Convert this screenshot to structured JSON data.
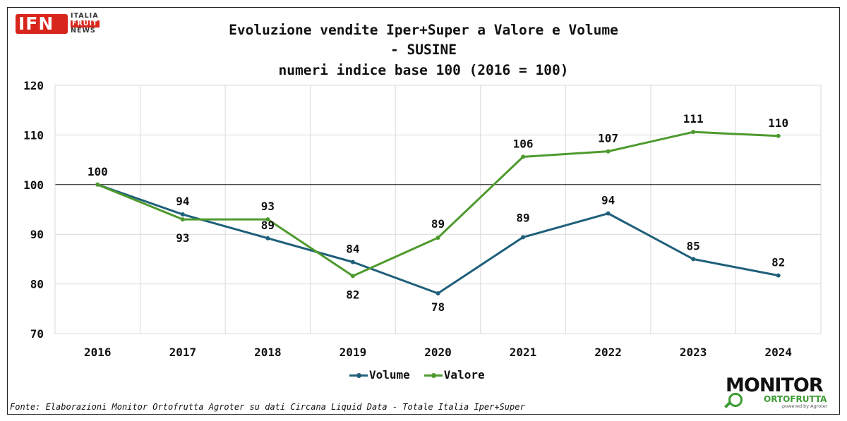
{
  "logo": {
    "main": "IFN",
    "line1": "ITALIA",
    "line2": "FRUIT",
    "line3": "NEWS"
  },
  "title_lines": [
    "Evoluzione vendite Iper+Super a Valore e Volume",
    "- SUSINE",
    "numeri indice base 100 (2016 = 100)"
  ],
  "chart_data": {
    "type": "line",
    "x": [
      "2016",
      "2017",
      "2018",
      "2019",
      "2020",
      "2021",
      "2022",
      "2023",
      "2024"
    ],
    "ylim": [
      70,
      120
    ],
    "yticks": [
      70,
      80,
      90,
      100,
      110,
      120
    ],
    "reference_line": 100,
    "grid": true,
    "legend_position": "bottom",
    "series": [
      {
        "name": "Volume",
        "color": "#1f5f7a",
        "values": [
          100,
          94,
          89.2,
          84.4,
          78.1,
          89.4,
          94.2,
          85,
          81.7
        ],
        "labels": [
          "",
          "94",
          "89",
          "84",
          "78",
          "89",
          "94",
          "85",
          "82"
        ]
      },
      {
        "name": "Valore",
        "color": "#4e9a2e",
        "values": [
          100,
          93,
          93,
          81.6,
          89.3,
          105.6,
          106.7,
          110.6,
          109.8
        ],
        "labels": [
          "100",
          "93",
          "93",
          "82",
          "89",
          "106",
          "107",
          "111",
          "110"
        ]
      }
    ]
  },
  "footer": "Fonte: Elaborazioni Monitor Ortofrutta Agroter su dati Circana Liquid Data - Totale Italia Iper+Super",
  "brand": {
    "line1": "MONITOR",
    "line2": "ORTOFRUTTA",
    "line3": "powered by Agroter"
  }
}
